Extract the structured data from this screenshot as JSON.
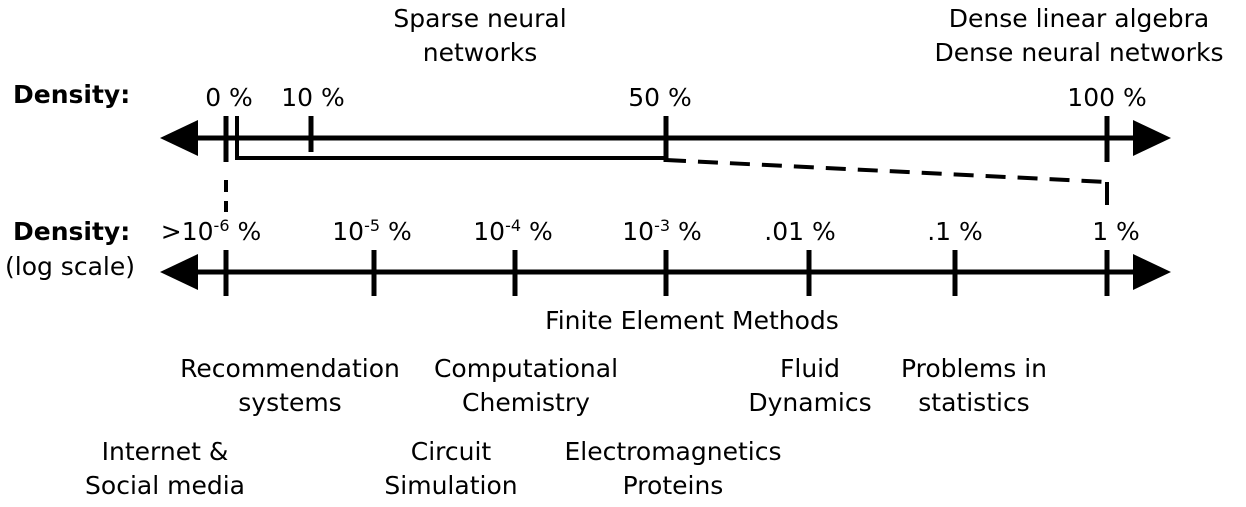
{
  "top_axis": {
    "title": "Density:",
    "ticks": [
      {
        "label": "0 %",
        "value": 0
      },
      {
        "label": "10 %",
        "value": 10
      },
      {
        "label": "50 %",
        "value": 50
      },
      {
        "label": "100 %",
        "value": 100
      }
    ],
    "annotations": [
      {
        "lines": [
          "Sparse neural",
          "networks"
        ]
      },
      {
        "lines": [
          "Dense linear algebra",
          "Dense neural networks"
        ]
      }
    ]
  },
  "bottom_axis": {
    "title": "Density:",
    "subtitle": "(log scale)",
    "ticks": [
      {
        "prefix": ">",
        "base": "10",
        "exp": "-6",
        "suffix": " %"
      },
      {
        "prefix": "",
        "base": "10",
        "exp": "-5",
        "suffix": " %"
      },
      {
        "prefix": "",
        "base": "10",
        "exp": "-4",
        "suffix": " %"
      },
      {
        "prefix": "",
        "base": "10",
        "exp": "-3",
        "suffix": " %"
      },
      {
        "label": ".01 %"
      },
      {
        "label": ".1 %"
      },
      {
        "label": "1 %"
      }
    ],
    "applications": [
      {
        "lines": [
          "Finite Element Methods"
        ]
      },
      {
        "lines": [
          "Recommendation",
          "systems"
        ]
      },
      {
        "lines": [
          "Computational",
          "Chemistry"
        ]
      },
      {
        "lines": [
          "Fluid",
          "Dynamics"
        ]
      },
      {
        "lines": [
          "Problems in",
          "statistics"
        ]
      },
      {
        "lines": [
          "Internet &",
          "Social media"
        ]
      },
      {
        "lines": [
          "Circuit",
          "Simulation"
        ]
      },
      {
        "lines": [
          "Electromagnetics",
          "Proteins"
        ]
      }
    ]
  },
  "colors": {
    "line": "#000000",
    "background": "#ffffff"
  }
}
